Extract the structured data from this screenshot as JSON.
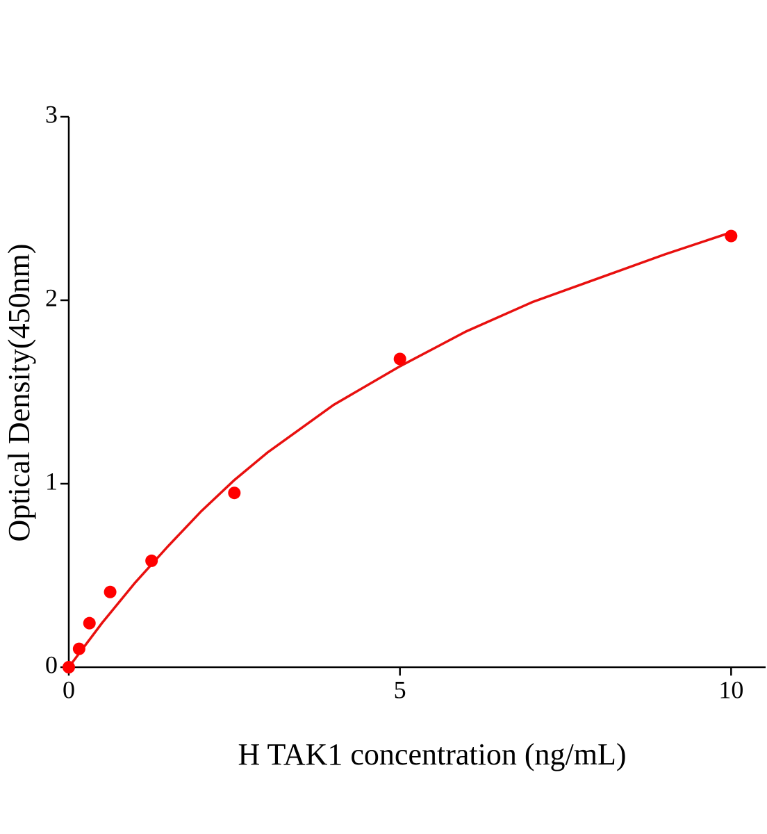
{
  "chart_data": {
    "type": "scatter",
    "xlabel": "H TAK1 concentration (ng/mL)",
    "ylabel": "Optical Density(450nm)",
    "x": [
      0,
      0.156,
      0.312,
      0.625,
      1.25,
      2.5,
      5,
      10
    ],
    "series": [
      {
        "color": "#ff0000",
        "values": [
          0,
          0.1,
          0.24,
          0.41,
          0.58,
          0.95,
          1.68,
          2.35
        ]
      }
    ],
    "fit": {
      "type": "line",
      "color": "#e8100f",
      "x": [
        0,
        0.25,
        0.5,
        1,
        1.5,
        2,
        2.5,
        3,
        4,
        5,
        6,
        7,
        8,
        9,
        10
      ],
      "values": [
        0,
        0.12,
        0.24,
        0.46,
        0.66,
        0.85,
        1.02,
        1.17,
        1.43,
        1.64,
        1.83,
        1.99,
        2.12,
        2.25,
        2.37
      ]
    },
    "xlim": [
      0,
      10.5
    ],
    "ylim": [
      0,
      3
    ],
    "xticks": [
      0,
      5,
      10
    ],
    "yticks": [
      0,
      1,
      2,
      3
    ]
  }
}
